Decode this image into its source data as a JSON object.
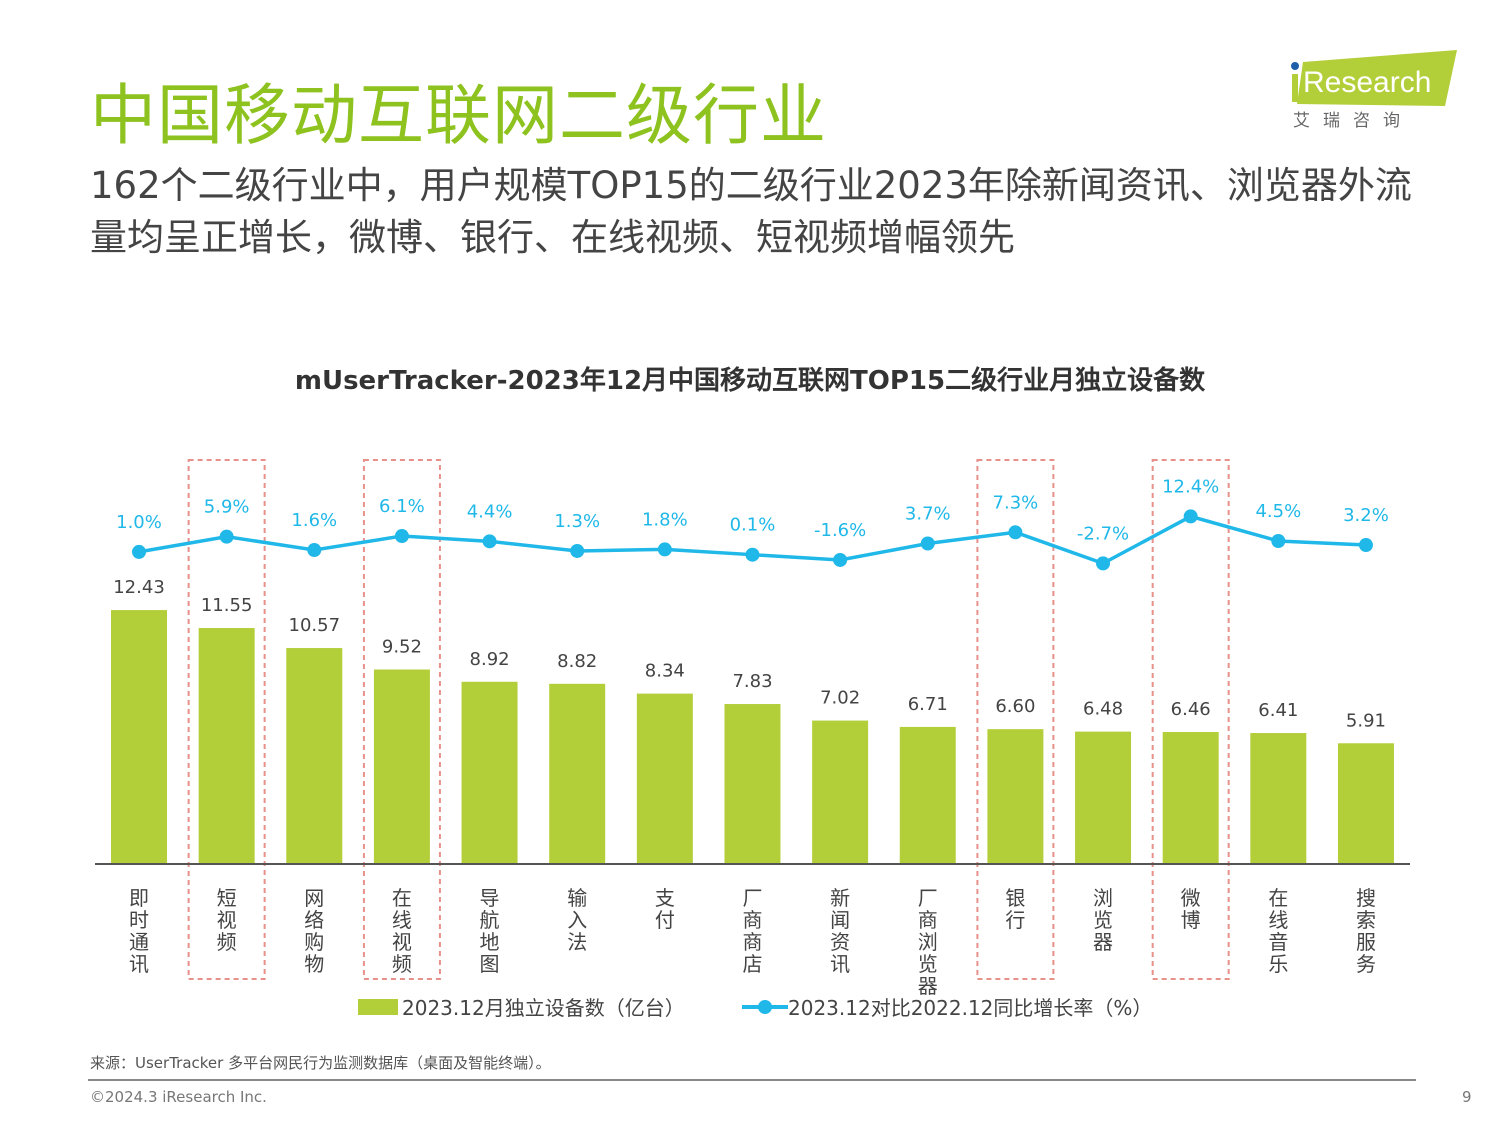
{
  "header": {
    "title": "中国移动互联网二级行业",
    "subtitle": "162个二级行业中，用户规模TOP15的二级行业2023年除新闻资讯、浏览器外流量均呈正增长，微博、银行、在线视频、短视频增幅领先"
  },
  "logo": {
    "brand": "iResearch",
    "cn": "艾 瑞 咨 询"
  },
  "chart_data": {
    "type": "bar+line",
    "title": "mUserTracker-2023年12月中国移动互联网TOP15二级行业月独立设备数",
    "categories": [
      "即时通讯",
      "短视频",
      "网络购物",
      "在线视频",
      "导航地图",
      "输入法",
      "支付",
      "厂商商店",
      "新闻资讯",
      "厂商浏览器",
      "银行",
      "浏览器",
      "微博",
      "在线音乐",
      "搜索服务"
    ],
    "series": [
      {
        "name": "2023.12月独立设备数（亿台）",
        "type": "bar",
        "color": "#b2cf3a",
        "values": [
          12.43,
          11.55,
          10.57,
          9.52,
          8.92,
          8.82,
          8.34,
          7.83,
          7.02,
          6.71,
          6.6,
          6.48,
          6.46,
          6.41,
          5.91
        ],
        "labels": [
          "12.43",
          "11.55",
          "10.57",
          "9.52",
          "8.92",
          "8.82",
          "8.34",
          "7.83",
          "7.02",
          "6.71",
          "6.60",
          "6.48",
          "6.46",
          "6.41",
          "5.91"
        ]
      },
      {
        "name": "2023.12对比2022.12同比增长率（%）",
        "type": "line",
        "color": "#1fb8e8",
        "values": [
          1.0,
          5.9,
          1.6,
          6.1,
          4.4,
          1.3,
          1.8,
          0.1,
          -1.6,
          3.7,
          7.3,
          -2.7,
          12.4,
          4.5,
          3.2
        ],
        "labels": [
          "1.0%",
          "5.9%",
          "1.6%",
          "6.1%",
          "4.4%",
          "1.3%",
          "1.8%",
          "0.1%",
          "-1.6%",
          "3.7%",
          "7.3%",
          "-2.7%",
          "12.4%",
          "4.5%",
          "3.2%"
        ]
      }
    ],
    "highlighted": [
      "短视频",
      "在线视频",
      "银行",
      "微博"
    ],
    "highlight_color": "#e8908a",
    "grid": false,
    "legend": "bottom"
  },
  "footer": {
    "source": "来源：UserTracker 多平台网民行为监测数据库（桌面及智能终端）。",
    "copyright": "©2024.3 iResearch Inc.",
    "page": "9"
  }
}
